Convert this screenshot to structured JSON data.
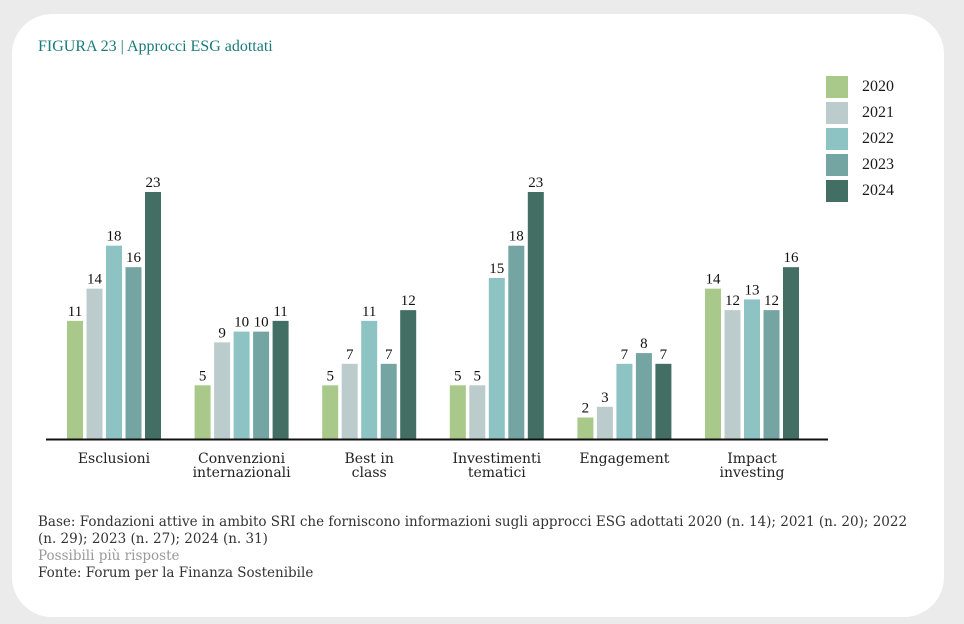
{
  "figure": {
    "title": "FIGURA 23 | Approcci ESG adottati"
  },
  "legend": [
    {
      "label": "2020",
      "color": "#a8c98a"
    },
    {
      "label": "2021",
      "color": "#bccccc"
    },
    {
      "label": "2022",
      "color": "#8ec3c4"
    },
    {
      "label": "2023",
      "color": "#74a5a3"
    },
    {
      "label": "2024",
      "color": "#436e63"
    }
  ],
  "chart_data": {
    "type": "bar",
    "title": "Approcci ESG adottati",
    "xlabel": "",
    "ylabel": "",
    "ylim": [
      0,
      23
    ],
    "grid": false,
    "legend_position": "top-right",
    "categories": [
      "Esclusioni",
      "Convenzioni internazionali",
      "Best in class",
      "Investimenti tematici",
      "Engagement",
      "Impact investing"
    ],
    "category_lines": [
      [
        "Esclusioni"
      ],
      [
        "Convenzioni",
        "internazionali"
      ],
      [
        "Best in",
        "class"
      ],
      [
        "Investimenti",
        "tematici"
      ],
      [
        "Engagement"
      ],
      [
        "Impact",
        "investing"
      ]
    ],
    "series": [
      {
        "name": "2020",
        "color": "#a8c98a",
        "values": [
          11,
          5,
          5,
          5,
          2,
          14
        ]
      },
      {
        "name": "2021",
        "color": "#bccccc",
        "values": [
          14,
          9,
          7,
          5,
          3,
          12
        ]
      },
      {
        "name": "2022",
        "color": "#8ec3c4",
        "values": [
          18,
          10,
          11,
          15,
          7,
          13
        ]
      },
      {
        "name": "2023",
        "color": "#74a5a3",
        "values": [
          16,
          10,
          7,
          18,
          8,
          12
        ]
      },
      {
        "name": "2024",
        "color": "#436e63",
        "values": [
          23,
          11,
          12,
          23,
          7,
          16
        ]
      }
    ]
  },
  "notes": {
    "base": "Base: Fondazioni attive in ambito SRI che forniscono informazioni sugli approcci ESG adottati 2020 (n. 14); 2021 (n. 20); 2022 (n. 29); 2023 (n. 27); 2024 (n. 31)",
    "multiple": "Possibili più risposte",
    "source": "Fonte: Forum per la Finanza Sostenibile"
  }
}
